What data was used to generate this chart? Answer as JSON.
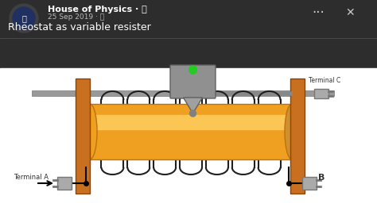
{
  "bg_top": "#2d2d2d",
  "bg_bottom": "#f0f0f0",
  "title_text": "House of Physics · 🔔",
  "subtitle_text": "25 Sep 2019 · 🌐",
  "caption": "Rheostat as variable resister",
  "terminal_a": "Terminal A",
  "terminal_b": "B",
  "terminal_c": "Terminal C",
  "wood_color": "#c87020",
  "rod_color": "#a0a0a0",
  "cylinder_color": "#f0a020",
  "cylinder_highlight": "#ffd060",
  "slider_color": "#909090",
  "coil_color": "#202020",
  "connector_color": "#909090",
  "green_dot": "#22cc22",
  "arrow_color": "#000000",
  "text_color_dark": "#ffffff",
  "text_color_light": "#000000"
}
